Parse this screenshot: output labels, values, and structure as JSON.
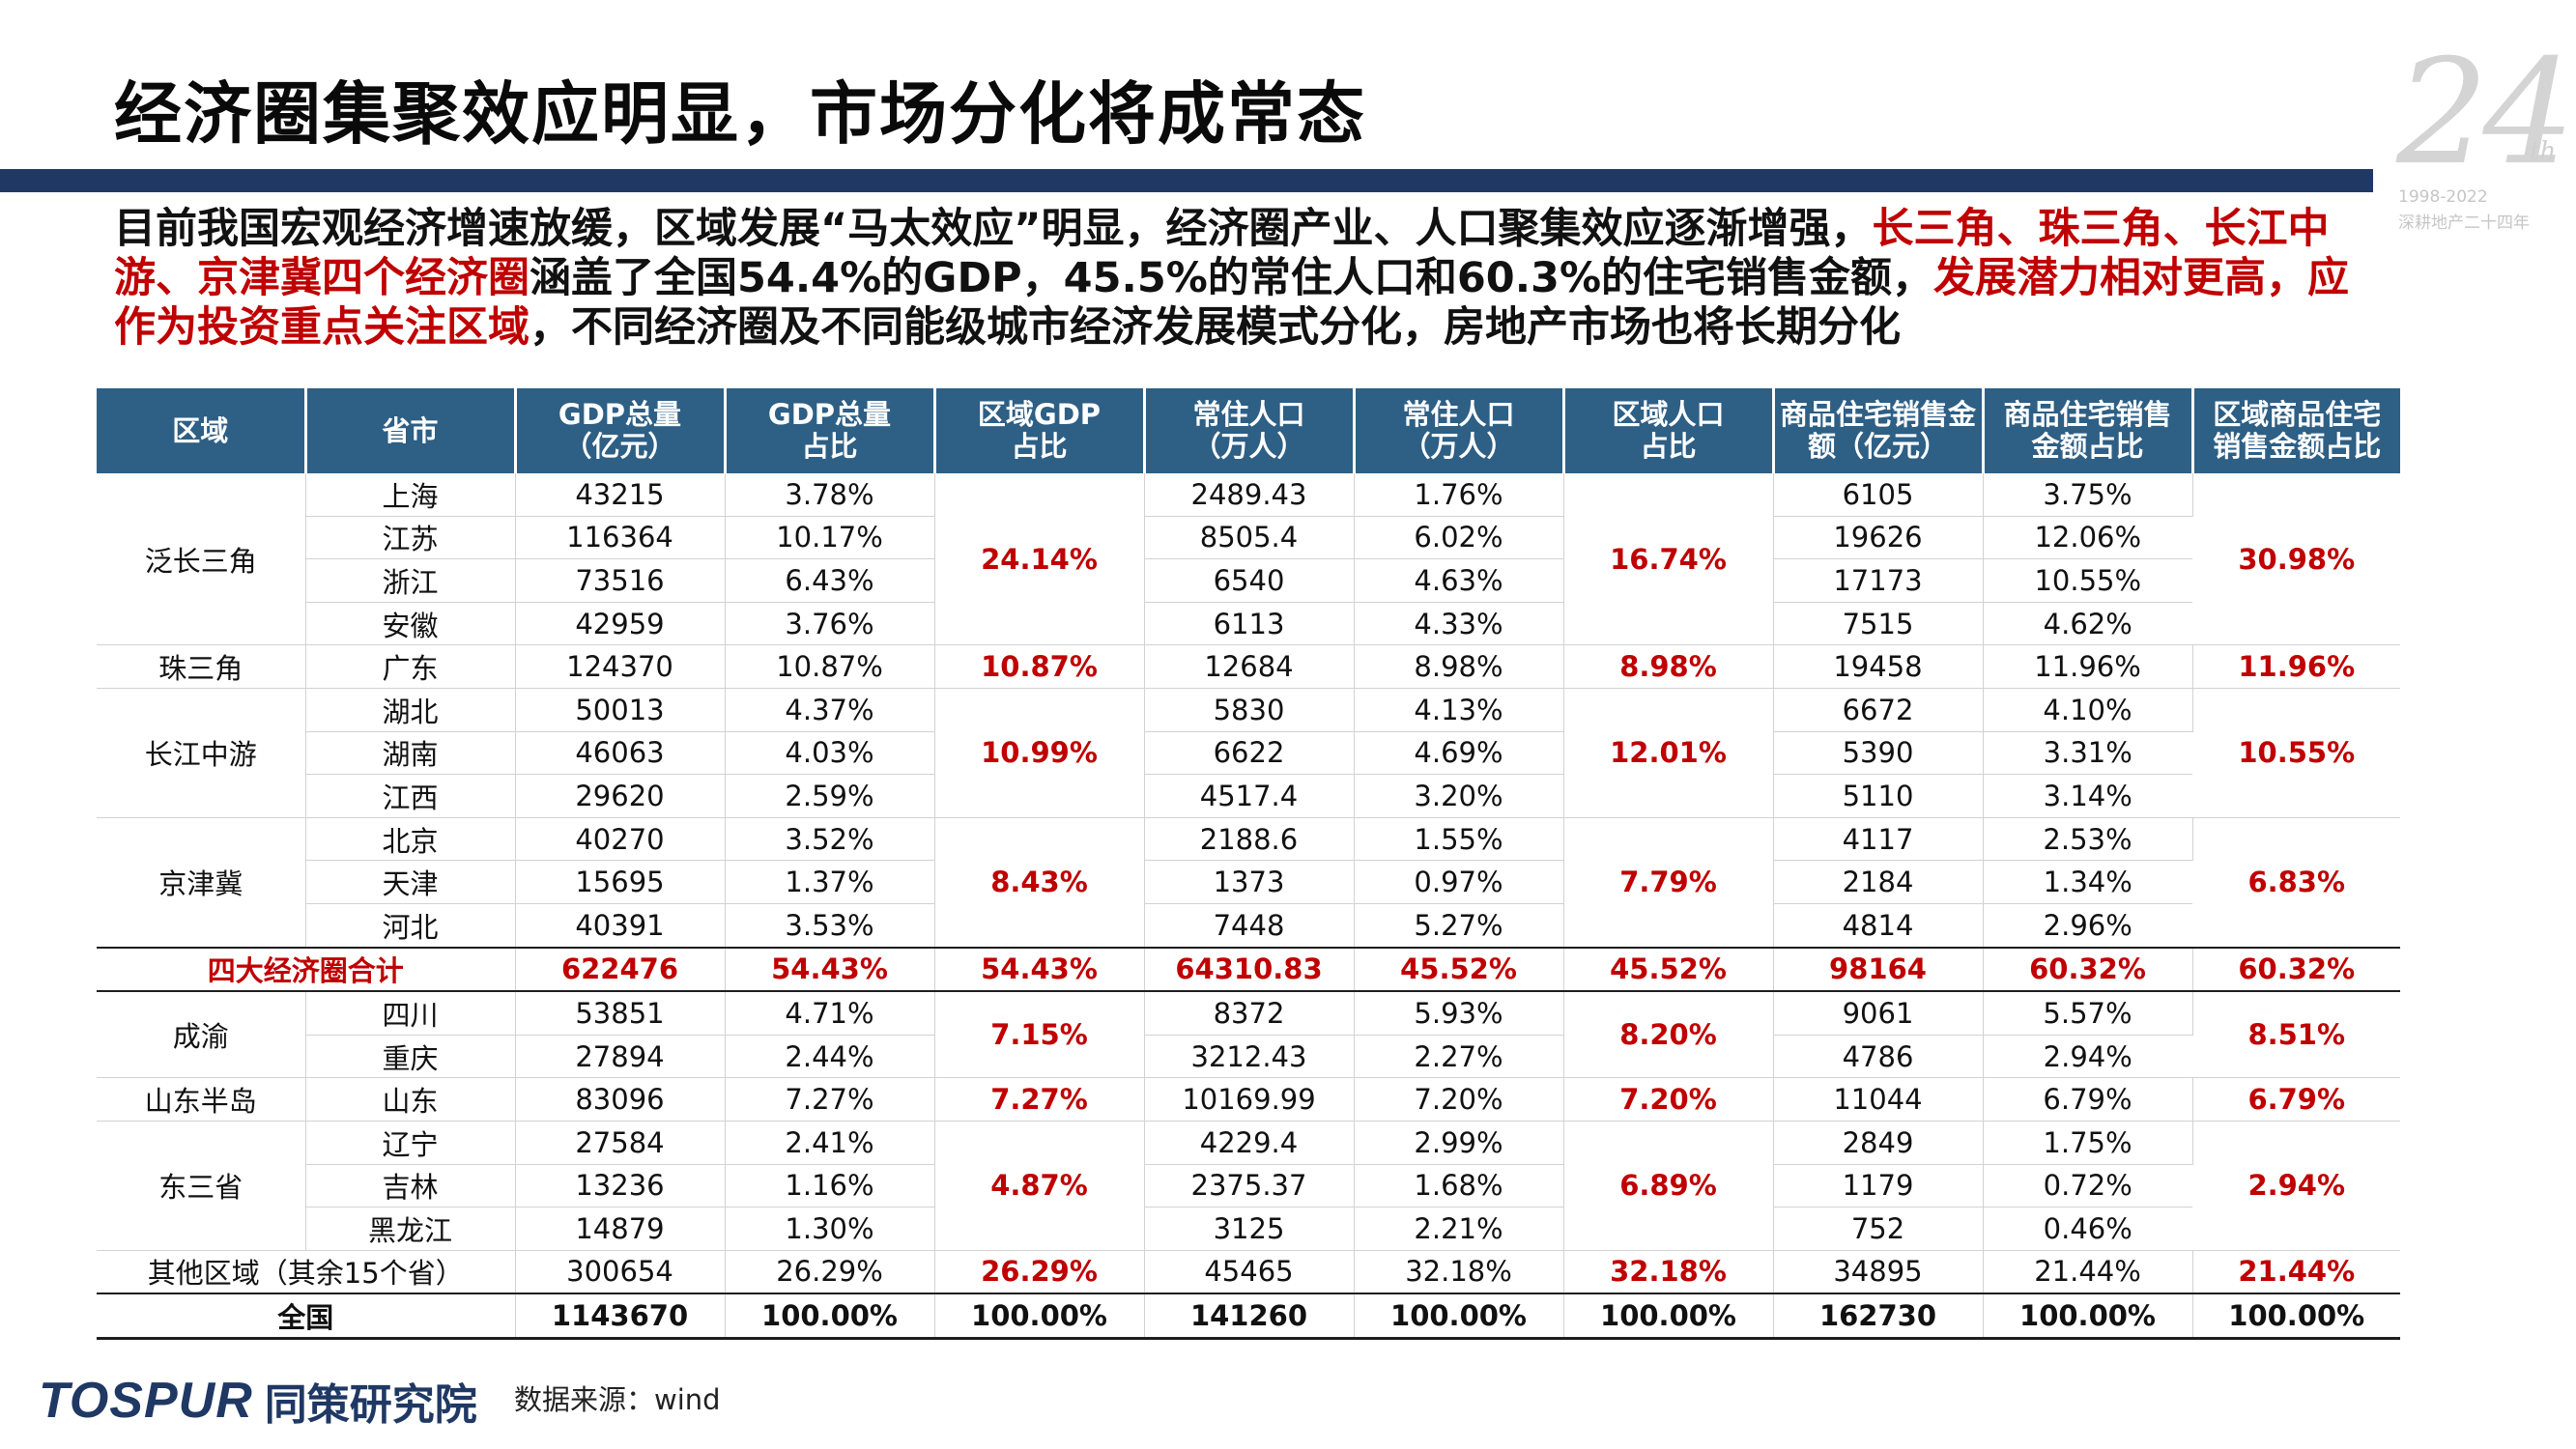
{
  "title": "经济圈集聚效应明显，市场分化将成常态",
  "logo": {
    "number": "24",
    "suffix": "th",
    "years": "1998-2022",
    "subtitle": "深耕地产二十四年"
  },
  "intro": {
    "p1": "目前我国宏观经济增速放缓，区域发展“马太效应”明显，经济圈产业、人口聚集效应逐渐增强，",
    "p2": "长三角、珠三角、长江中游、京津冀四个经济圈",
    "p3": "涵盖了全国54.4%的GDP，45.5%的常住人口和60.3%的住宅销售金额，",
    "p4": "发展潜力相对更高，应作为投资重点关注区域",
    "p5": "，不同经济圈及不同能级城市经济发展模式分化，房地产市场也将长期分化"
  },
  "table": {
    "headers": [
      [
        "区域"
      ],
      [
        "省市"
      ],
      [
        "GDP总量",
        "（亿元）"
      ],
      [
        "GDP总量",
        "占比"
      ],
      [
        "区域GDP",
        "占比"
      ],
      [
        "常住人口",
        "（万人）"
      ],
      [
        "常住人口",
        "（万人）"
      ],
      [
        "区域人口",
        "占比"
      ],
      [
        "商品住宅销售金",
        "额（亿元）"
      ],
      [
        "商品住宅销售",
        "金额占比"
      ],
      [
        "区域商品住宅",
        "销售金额占比"
      ]
    ],
    "groups": [
      {
        "region": "泛长三角",
        "region_gdp": "24.14%",
        "region_pop": "16.74%",
        "region_sales": "30.98%",
        "rows": [
          [
            "上海",
            "43215",
            "3.78%",
            "2489.43",
            "1.76%",
            "6105",
            "3.75%"
          ],
          [
            "江苏",
            "116364",
            "10.17%",
            "8505.4",
            "6.02%",
            "19626",
            "12.06%"
          ],
          [
            "浙江",
            "73516",
            "6.43%",
            "6540",
            "4.63%",
            "17173",
            "10.55%"
          ],
          [
            "安徽",
            "42959",
            "3.76%",
            "6113",
            "4.33%",
            "7515",
            "4.62%"
          ]
        ]
      },
      {
        "region": "珠三角",
        "region_gdp": "10.87%",
        "region_pop": "8.98%",
        "region_sales": "11.96%",
        "rows": [
          [
            "广东",
            "124370",
            "10.87%",
            "12684",
            "8.98%",
            "19458",
            "11.96%"
          ]
        ]
      },
      {
        "region": "长江中游",
        "region_gdp": "10.99%",
        "region_pop": "12.01%",
        "region_sales": "10.55%",
        "rows": [
          [
            "湖北",
            "50013",
            "4.37%",
            "5830",
            "4.13%",
            "6672",
            "4.10%"
          ],
          [
            "湖南",
            "46063",
            "4.03%",
            "6622",
            "4.69%",
            "5390",
            "3.31%"
          ],
          [
            "江西",
            "29620",
            "2.59%",
            "4517.4",
            "3.20%",
            "5110",
            "3.14%"
          ]
        ]
      },
      {
        "region": "京津冀",
        "region_gdp": "8.43%",
        "region_pop": "7.79%",
        "region_sales": "6.83%",
        "rows": [
          [
            "北京",
            "40270",
            "3.52%",
            "2188.6",
            "1.55%",
            "4117",
            "2.53%"
          ],
          [
            "天津",
            "15695",
            "1.37%",
            "1373",
            "0.97%",
            "2184",
            "1.34%"
          ],
          [
            "河北",
            "40391",
            "3.53%",
            "7448",
            "5.27%",
            "4814",
            "2.96%"
          ]
        ]
      },
      {
        "summary": true,
        "label": "四大经济圈合计",
        "cells": [
          "622476",
          "54.43%",
          "54.43%",
          "64310.83",
          "45.52%",
          "45.52%",
          "98164",
          "60.32%",
          "60.32%"
        ]
      },
      {
        "region": "成渝",
        "region_gdp": "7.15%",
        "region_pop": "8.20%",
        "region_sales": "8.51%",
        "rows": [
          [
            "四川",
            "53851",
            "4.71%",
            "8372",
            "5.93%",
            "9061",
            "5.57%"
          ],
          [
            "重庆",
            "27894",
            "2.44%",
            "3212.43",
            "2.27%",
            "4786",
            "2.94%"
          ]
        ]
      },
      {
        "region": "山东半岛",
        "region_gdp": "7.27%",
        "region_pop": "7.20%",
        "region_sales": "6.79%",
        "rows": [
          [
            "山东",
            "83096",
            "7.27%",
            "10169.99",
            "7.20%",
            "11044",
            "6.79%"
          ]
        ]
      },
      {
        "region": "东三省",
        "region_gdp": "4.87%",
        "region_pop": "6.89%",
        "region_sales": "2.94%",
        "rows": [
          [
            "辽宁",
            "27584",
            "2.41%",
            "4229.4",
            "2.99%",
            "2849",
            "1.75%"
          ],
          [
            "吉林",
            "13236",
            "1.16%",
            "2375.37",
            "1.68%",
            "1179",
            "0.72%"
          ],
          [
            "黑龙江",
            "14879",
            "1.30%",
            "3125",
            "2.21%",
            "752",
            "0.46%"
          ]
        ]
      },
      {
        "merged": true,
        "label": "其他区域（其余15个省）",
        "cells": [
          "300654",
          "26.29%",
          "26.29%",
          "45465",
          "32.18%",
          "32.18%",
          "34895",
          "21.44%",
          "21.44%"
        ]
      },
      {
        "total": true,
        "label": "全国",
        "cells": [
          "1143670",
          "100.00%",
          "100.00%",
          "141260",
          "100.00%",
          "100.00%",
          "162730",
          "100.00%",
          "100.00%"
        ]
      }
    ]
  },
  "footer": {
    "brand_en": "TOSPUR",
    "brand_cn": "同策研究院",
    "source": "数据来源：wind"
  },
  "colors": {
    "header_bg": "#2e5f85",
    "rule": "#1f3864",
    "accent_red": "#c00000"
  }
}
